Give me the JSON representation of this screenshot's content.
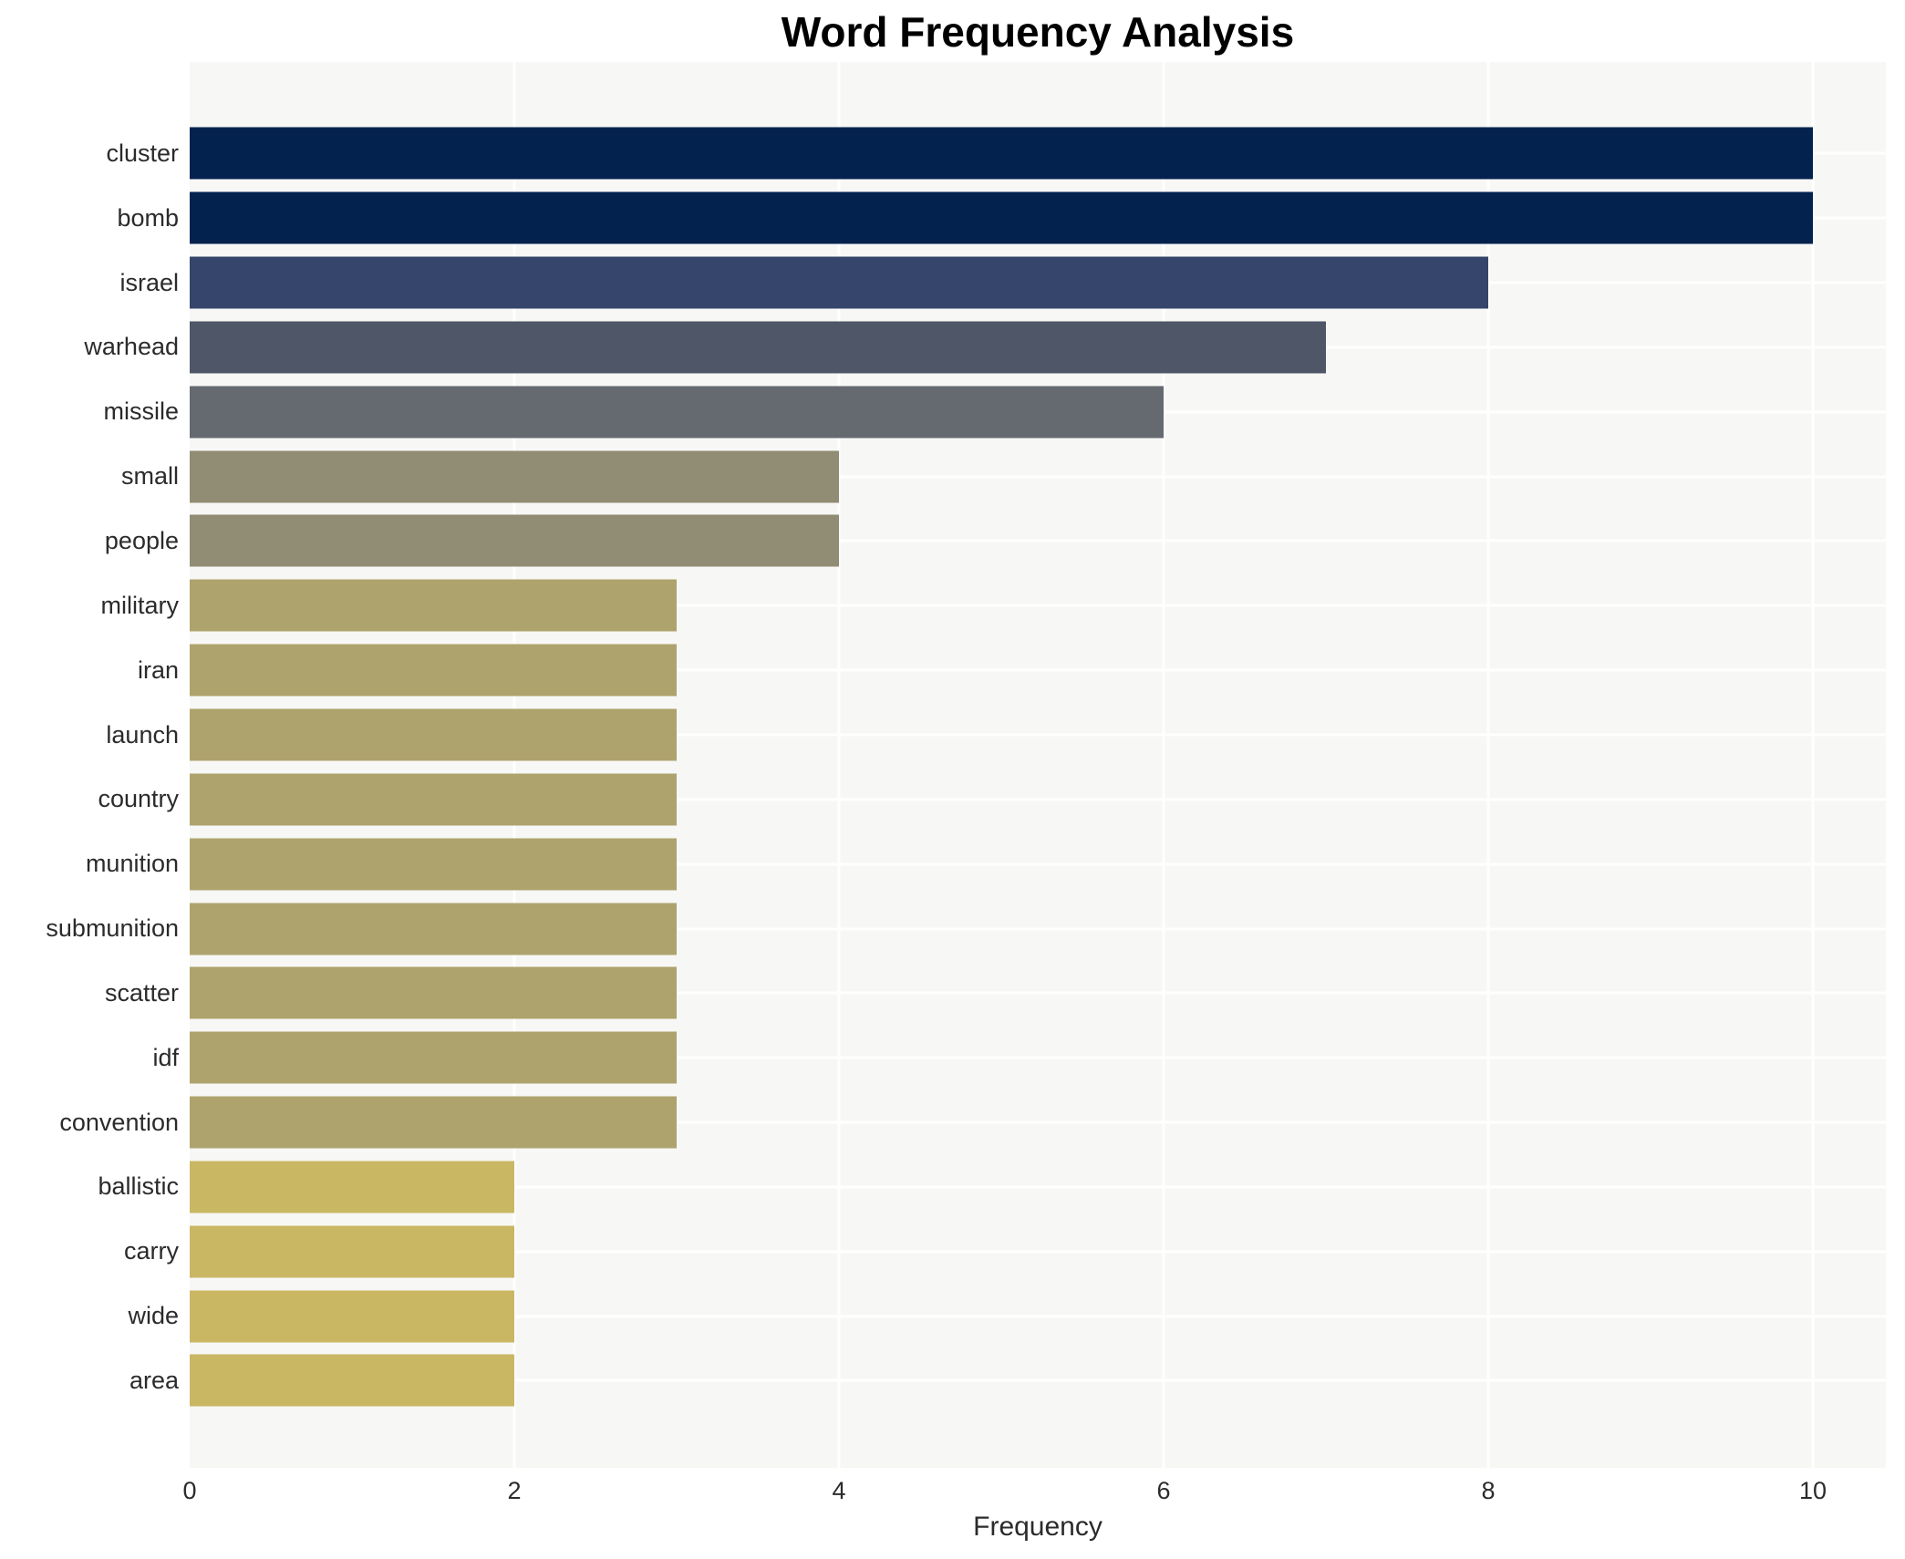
{
  "chart_data": {
    "type": "bar",
    "orientation": "horizontal",
    "title": "Word Frequency Analysis",
    "xlabel": "Frequency",
    "ylabel": "",
    "xlim": [
      0,
      10.45
    ],
    "xticks": [
      0,
      2,
      4,
      6,
      8,
      10
    ],
    "grid": true,
    "legend_position": "none",
    "categories": [
      "cluster",
      "bomb",
      "israel",
      "warhead",
      "missile",
      "small",
      "people",
      "military",
      "iran",
      "launch",
      "country",
      "munition",
      "submunition",
      "scatter",
      "idf",
      "convention",
      "ballistic",
      "carry",
      "wide",
      "area"
    ],
    "values": [
      10,
      10,
      8,
      7,
      6,
      4,
      4,
      3,
      3,
      3,
      3,
      3,
      3,
      3,
      3,
      3,
      2,
      2,
      2,
      2
    ],
    "bar_colors": [
      "#03224e",
      "#03224e",
      "#35456b",
      "#4f5668",
      "#656a71",
      "#918d74",
      "#918d74",
      "#aea36c",
      "#aea36c",
      "#aea36c",
      "#aea36c",
      "#aea36c",
      "#aea36c",
      "#aea36c",
      "#aea36c",
      "#aea36c",
      "#c9b763",
      "#c9b763",
      "#c9b763",
      "#c9b763"
    ],
    "plot_background": "#f7f7f6",
    "grid_color": "#ffffff",
    "title_color": "#000000",
    "tick_label_color": "#2b2b2b"
  }
}
